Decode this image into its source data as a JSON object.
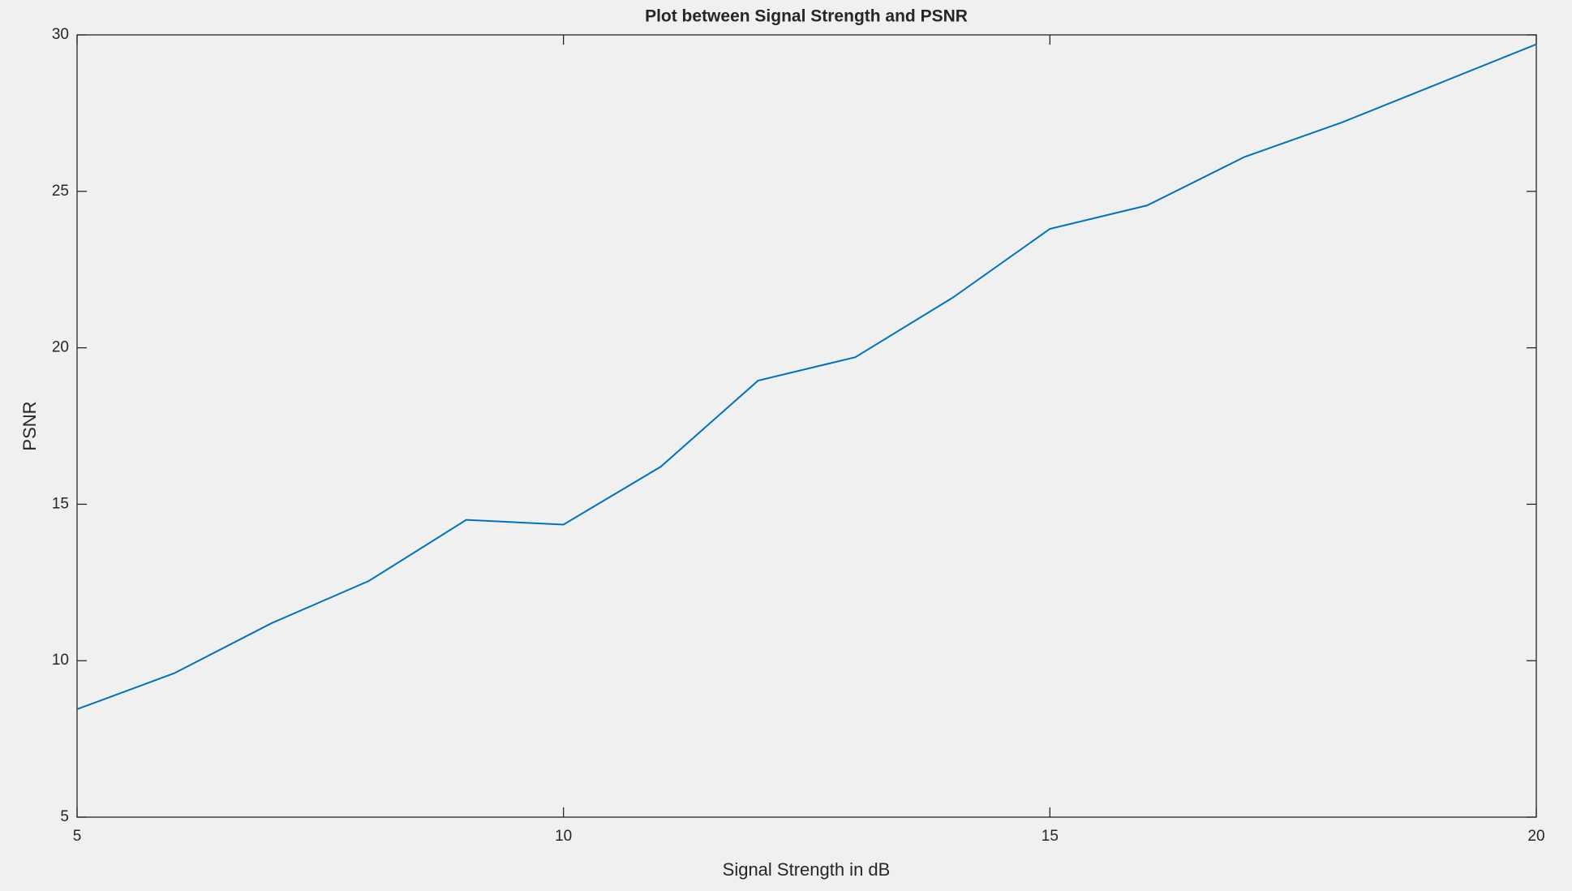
{
  "chart_data": {
    "type": "line",
    "title": "Plot between Signal Strength and PSNR",
    "x_label": "Signal Strength in dB",
    "y_label": "PSNR",
    "x": [
      5,
      6,
      7,
      8,
      9,
      10,
      11,
      12,
      13,
      14,
      15,
      16,
      17,
      18,
      19,
      20
    ],
    "series": [
      {
        "color": "#0072bd",
        "values": [
          8.45,
          9.6,
          11.2,
          12.55,
          14.5,
          14.35,
          16.2,
          18.95,
          19.7,
          21.6,
          23.8,
          24.55,
          26.1,
          27.2,
          28.45,
          29.7
        ]
      }
    ],
    "xlim": [
      5,
      20
    ],
    "xticks": [
      5,
      10,
      15,
      20
    ],
    "ylim": [
      5,
      30
    ],
    "yticks": [
      5,
      10,
      15,
      20,
      25,
      30
    ]
  }
}
